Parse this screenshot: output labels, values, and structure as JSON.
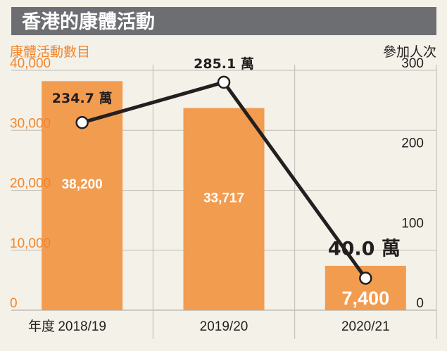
{
  "chart_data": {
    "type": "bar",
    "title": "香港的康體活動",
    "y_left_label": "康體活動數目",
    "y_right_label": "參加人次",
    "x_axis_label": "年度",
    "categories": [
      "2018/19",
      "2019/20",
      "2020/21"
    ],
    "y_left_ticks": [
      "40,000",
      "30,000",
      "20,000",
      "10,000",
      "0"
    ],
    "y_right_ticks": [
      "300",
      "200",
      "100",
      "0"
    ],
    "ylim_left": [
      0,
      40000
    ],
    "ylim_right": [
      0,
      300
    ],
    "grid": true,
    "series": [
      {
        "axis": "left",
        "kind": "bar",
        "values": [
          38200,
          33717,
          7400
        ],
        "labels": [
          "38,200",
          "33,717",
          "7,400"
        ]
      },
      {
        "axis": "right",
        "kind": "line",
        "unit": "萬",
        "values": [
          234.7,
          285.1,
          40.0
        ],
        "labels": [
          "234.7 萬",
          "285.1 萬",
          "40.0 萬"
        ]
      }
    ],
    "colors": {
      "bar": "#f29c50",
      "line": "#231f20",
      "left_axis_text": "#f0862e",
      "right_axis_text": "#231f20",
      "banner_bg": "#6d6e71",
      "banner_text": "#ffffff",
      "grid": "#bdbcb6",
      "background": "#f4f1e8"
    }
  }
}
